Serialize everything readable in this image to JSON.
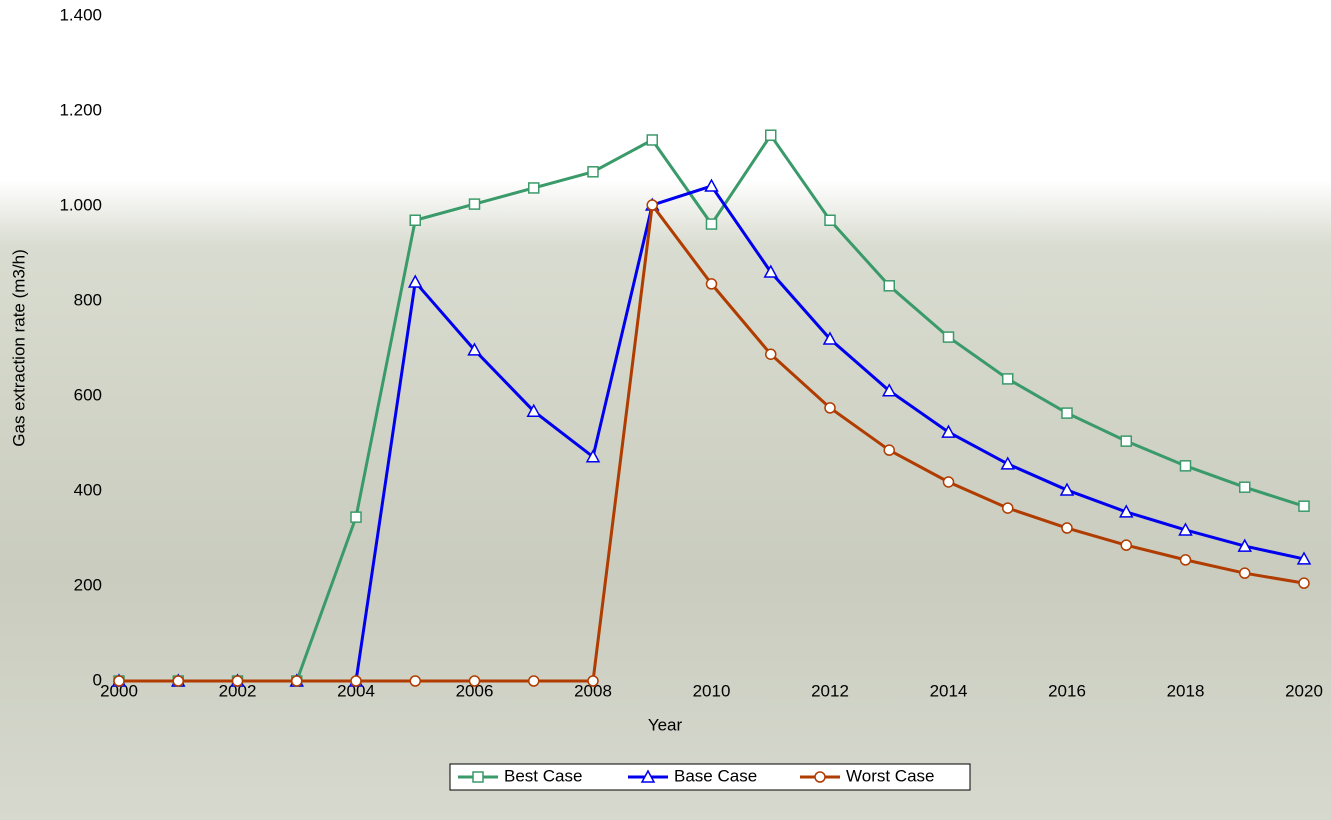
{
  "chart_data": {
    "type": "line",
    "x_label": "Year",
    "y_label": "Gas extraction rate (m3/h)",
    "x": [
      2000,
      2001,
      2002,
      2003,
      2004,
      2005,
      2006,
      2007,
      2008,
      2009,
      2010,
      2011,
      2012,
      2013,
      2014,
      2015,
      2016,
      2017,
      2018,
      2019,
      2020
    ],
    "xlim": [
      2000,
      2020
    ],
    "xticks": [
      2000,
      2002,
      2004,
      2006,
      2008,
      2010,
      2012,
      2014,
      2016,
      2018,
      2020
    ],
    "ylim": [
      0,
      1400
    ],
    "yticks": [
      0,
      200,
      400,
      600,
      800,
      {
        "value": 1000,
        "label": "1.000"
      },
      {
        "value": 1200,
        "label": "1.200"
      },
      {
        "value": 1400,
        "label": "1.400"
      }
    ],
    "legend": "bottom",
    "series": [
      {
        "name": "Best Case",
        "color": "#3a9a6a",
        "marker": "square",
        "values": [
          0,
          0,
          0,
          0,
          345,
          970,
          1004,
          1038,
          1072,
          1139,
          962,
          1149,
          970,
          832,
          724,
          636,
          564,
          505,
          453,
          408,
          368
        ]
      },
      {
        "name": "Base Case",
        "color": "#0000ee",
        "marker": "triangle",
        "values": [
          0,
          0,
          0,
          0,
          0,
          840,
          697,
          568,
          472,
          1002,
          1042,
          861,
          720,
          611,
          524,
          457,
          402,
          356,
          318,
          284,
          257
        ]
      },
      {
        "name": "Worst Case",
        "color": "#b03c00",
        "marker": "circle",
        "values": [
          0,
          0,
          0,
          0,
          0,
          0,
          0,
          0,
          0,
          1002,
          836,
          688,
          575,
          486,
          419,
          364,
          322,
          286,
          255,
          227,
          206
        ]
      }
    ]
  }
}
